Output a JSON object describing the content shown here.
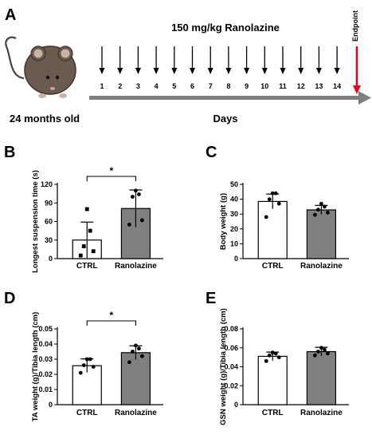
{
  "panel_a": {
    "letter": "A",
    "dose_label": "150 mg/kg Ranolazine",
    "age_label": "24 months old",
    "axis_label": "Days",
    "endpoint_label": "Endpoint",
    "days": [
      "1",
      "2",
      "3",
      "4",
      "5",
      "6",
      "7",
      "8",
      "9",
      "10",
      "11",
      "12",
      "13",
      "14"
    ],
    "arrow_color": "#000000",
    "endpoint_color": "#e8001c",
    "axis_color": "#7f7f7f"
  },
  "chart_data": [
    {
      "id": "B",
      "type": "bar",
      "panel_letter": "B",
      "categories": [
        "CTRL",
        "Ranolazine"
      ],
      "values": [
        30,
        81
      ],
      "errors": [
        29,
        30
      ],
      "points": [
        [
          5,
          12,
          20,
          45,
          80
        ],
        [
          55,
          62,
          100,
          104,
          110
        ]
      ],
      "ylabel": "Longest suspension time (s)",
      "ylim": [
        0,
        120
      ],
      "yticks": [
        "0",
        "30",
        "60",
        "90",
        "120"
      ],
      "significance": "*",
      "colors": [
        "#ffffff",
        "#808080"
      ]
    },
    {
      "id": "C",
      "type": "bar",
      "panel_letter": "C",
      "categories": [
        "CTRL",
        "Ranolazine"
      ],
      "values": [
        38.5,
        32.8
      ],
      "errors": [
        5,
        3
      ],
      "points": [
        [
          28,
          37,
          40,
          44,
          44
        ],
        [
          29.5,
          31,
          33,
          35,
          37
        ]
      ],
      "ylabel": "Body weight (g)",
      "ylim": [
        0,
        50
      ],
      "yticks": [
        "0",
        "10",
        "20",
        "30",
        "40",
        "50"
      ],
      "colors": [
        "#ffffff",
        "#808080"
      ]
    },
    {
      "id": "D",
      "type": "bar",
      "panel_letter": "D",
      "categories": [
        "CTRL",
        "Ranolazine"
      ],
      "values": [
        0.0257,
        0.0343
      ],
      "errors": [
        0.0045,
        0.0045
      ],
      "points": [
        [
          0.021,
          0.025,
          0.026,
          0.03,
          0.03
        ],
        [
          0.028,
          0.032,
          0.035,
          0.037,
          0.039
        ]
      ],
      "ylabel": "TA weight (g)/Tibia length (cm)",
      "ylim": [
        0,
        0.05
      ],
      "yticks": [
        "0",
        "0.01",
        "0.02",
        "0.03",
        "0.04",
        "0.05"
      ],
      "significance": "*",
      "colors": [
        "#ffffff",
        "#808080"
      ]
    },
    {
      "id": "E",
      "type": "bar",
      "panel_letter": "E",
      "categories": [
        "CTRL",
        "Ranolazine"
      ],
      "values": [
        0.051,
        0.056
      ],
      "errors": [
        0.0045,
        0.0045
      ],
      "points": [
        [
          0.046,
          0.05,
          0.052,
          0.054,
          0.055
        ],
        [
          0.052,
          0.054,
          0.056,
          0.058,
          0.06
        ]
      ],
      "ylabel": "GSN weight (g)/Tibia length (cm)",
      "ylim": [
        0,
        0.08
      ],
      "yticks": [
        "0",
        "0.02",
        "0.04",
        "0.06",
        "0.08"
      ],
      "colors": [
        "#ffffff",
        "#808080"
      ]
    }
  ]
}
